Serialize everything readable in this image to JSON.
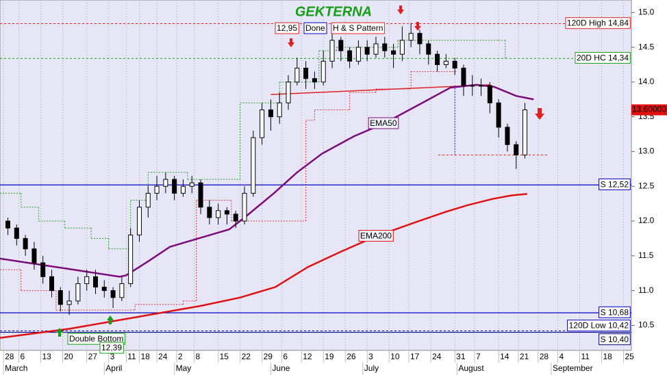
{
  "chart_data": {
    "type": "candlestick",
    "title": "GEKTERNA",
    "xlim": [
      -0.8,
      143.3
    ],
    "ylim": [
      10.14,
      15.18
    ],
    "grid": true,
    "xticks": [
      {
        "value": 0,
        "label": "28"
      },
      {
        "value": 3.5,
        "label": "6"
      },
      {
        "value": 8.5,
        "label": "13"
      },
      {
        "value": 13.5,
        "label": "20"
      },
      {
        "value": 19,
        "label": "27"
      },
      {
        "value": 24,
        "label": "3"
      },
      {
        "value": 28,
        "label": "11"
      },
      {
        "value": 31,
        "label": "18"
      },
      {
        "value": 35,
        "label": "24"
      },
      {
        "value": 39.5,
        "label": "2"
      },
      {
        "value": 43.5,
        "label": "8"
      },
      {
        "value": 49,
        "label": "15"
      },
      {
        "value": 54,
        "label": "22"
      },
      {
        "value": 59,
        "label": "29"
      },
      {
        "value": 63.5,
        "label": "6"
      },
      {
        "value": 68,
        "label": "12"
      },
      {
        "value": 73,
        "label": "19"
      },
      {
        "value": 78,
        "label": "26"
      },
      {
        "value": 83,
        "label": "3"
      },
      {
        "value": 88,
        "label": "10"
      },
      {
        "value": 92.5,
        "label": "17"
      },
      {
        "value": 97.5,
        "label": "24"
      },
      {
        "value": 103,
        "label": "31"
      },
      {
        "value": 107.5,
        "label": "7"
      },
      {
        "value": 113,
        "label": "14"
      },
      {
        "value": 117.5,
        "label": "21"
      },
      {
        "value": 122,
        "label": "28"
      },
      {
        "value": 126.5,
        "label": "4"
      },
      {
        "value": 131.5,
        "label": "11"
      },
      {
        "value": 136.5,
        "label": "18"
      },
      {
        "value": 141.5,
        "label": "25"
      }
    ],
    "month_ticks": [
      {
        "value": 0,
        "label": "March"
      },
      {
        "value": 23,
        "label": "April"
      },
      {
        "value": 39,
        "label": "May"
      },
      {
        "value": 61,
        "label": "June"
      },
      {
        "value": 82,
        "label": "July"
      },
      {
        "value": 103.5,
        "label": "August"
      },
      {
        "value": 125,
        "label": "September"
      }
    ],
    "yticks": [
      {
        "value": 15,
        "label": "15.0"
      },
      14.5,
      {
        "value": 14,
        "label": "14.0"
      },
      13.5,
      {
        "value": 13,
        "label": "13.0"
      },
      12.5,
      {
        "value": 12,
        "label": "12.0"
      },
      11.5,
      {
        "value": 11,
        "label": "11.0"
      },
      10.5
    ],
    "candles": {
      "up_color": "#ffffff",
      "down_color": "#000000",
      "x": [
        1,
        3,
        5,
        7,
        9,
        11,
        13,
        15,
        17,
        19,
        21,
        23,
        25,
        27,
        29,
        31,
        33,
        35,
        37,
        39,
        41,
        43,
        45,
        47,
        49,
        51,
        53,
        55,
        57,
        59,
        61,
        63,
        65,
        67,
        69,
        71,
        73,
        75,
        77,
        79,
        81,
        83,
        85,
        87,
        89,
        91,
        93,
        95,
        97,
        99,
        101,
        103,
        105,
        107,
        109,
        111,
        113,
        115,
        117,
        119
      ],
      "open": [
        12.0,
        11.9,
        11.75,
        11.6,
        11.4,
        11.2,
        11.0,
        10.8,
        10.85,
        11.1,
        11.2,
        11.05,
        11.0,
        10.9,
        11.1,
        11.8,
        12.2,
        12.4,
        12.5,
        12.6,
        12.4,
        12.5,
        12.55,
        12.2,
        12.05,
        12.15,
        12.1,
        12.0,
        12.4,
        13.2,
        13.6,
        13.5,
        13.7,
        14.0,
        14.2,
        14.05,
        14.0,
        14.3,
        14.6,
        14.45,
        14.3,
        14.5,
        14.4,
        14.55,
        14.45,
        14.4,
        14.6,
        14.7,
        14.55,
        14.4,
        14.25,
        14.3,
        14.2,
        13.95,
        13.95,
        13.95,
        13.7,
        13.35,
        13.1,
        12.95
      ],
      "high": [
        12.05,
        11.95,
        11.8,
        11.7,
        11.5,
        11.3,
        11.05,
        11.0,
        11.2,
        11.3,
        11.3,
        11.15,
        11.05,
        11.2,
        11.9,
        12.3,
        12.5,
        12.65,
        12.7,
        12.65,
        12.6,
        12.65,
        12.6,
        12.3,
        12.25,
        12.2,
        12.15,
        12.5,
        13.3,
        13.7,
        13.75,
        13.85,
        14.1,
        14.35,
        14.3,
        14.15,
        14.45,
        14.7,
        14.65,
        14.5,
        14.6,
        14.6,
        14.65,
        14.65,
        14.55,
        14.8,
        14.85,
        14.75,
        14.6,
        14.45,
        14.4,
        14.35,
        14.25,
        14.1,
        14.05,
        14.0,
        13.75,
        13.4,
        13.15,
        13.7
      ],
      "low": [
        11.8,
        11.65,
        11.5,
        11.3,
        11.1,
        10.9,
        10.7,
        10.65,
        10.8,
        11.0,
        10.95,
        10.9,
        10.75,
        10.85,
        11.05,
        11.7,
        12.05,
        12.3,
        12.4,
        12.3,
        12.35,
        12.4,
        12.1,
        11.95,
        11.95,
        11.95,
        11.9,
        11.95,
        12.35,
        13.1,
        13.3,
        13.4,
        13.6,
        13.95,
        13.9,
        13.9,
        13.95,
        14.2,
        14.3,
        14.2,
        14.25,
        14.3,
        14.35,
        14.35,
        14.2,
        14.3,
        14.5,
        14.4,
        14.25,
        14.15,
        14.2,
        14.1,
        13.8,
        13.8,
        13.8,
        13.55,
        13.2,
        13.0,
        12.75,
        12.9
      ],
      "close": [
        11.9,
        11.75,
        11.6,
        11.4,
        11.2,
        11.0,
        10.8,
        10.85,
        11.1,
        11.2,
        11.05,
        11.0,
        10.9,
        11.1,
        11.8,
        12.2,
        12.4,
        12.5,
        12.6,
        12.4,
        12.5,
        12.55,
        12.2,
        12.05,
        12.15,
        12.1,
        12.0,
        12.4,
        13.2,
        13.6,
        13.5,
        13.7,
        14.0,
        14.2,
        14.05,
        14.0,
        14.3,
        14.6,
        14.45,
        14.3,
        14.5,
        14.4,
        14.55,
        14.45,
        14.4,
        14.6,
        14.7,
        14.55,
        14.4,
        14.25,
        14.3,
        14.2,
        13.95,
        13.95,
        13.95,
        13.7,
        13.35,
        13.1,
        12.95,
        13.6
      ]
    },
    "series": [
      {
        "name": "EMA50",
        "color": "#7a0a7a",
        "x": [
          -0.8,
          15,
          26.5,
          28,
          33,
          38,
          45,
          51.5,
          55,
          61.7,
          67,
          72.7,
          80,
          86.7,
          95,
          102,
          108,
          112,
          117,
          121
        ],
        "values": [
          11.46,
          11.31,
          11.2,
          11.22,
          11.42,
          11.63,
          11.76,
          11.88,
          12.05,
          12.4,
          12.7,
          12.97,
          13.22,
          13.4,
          13.68,
          13.92,
          13.96,
          13.93,
          13.8,
          13.75
        ]
      },
      {
        "name": "EMA200",
        "color": "#e01010",
        "x": [
          -0.8,
          15,
          30.5,
          45,
          54,
          62,
          69.5,
          77,
          85,
          93,
          100.8,
          106,
          111.7,
          116,
          119.5
        ],
        "values": [
          10.32,
          10.45,
          10.62,
          10.78,
          10.9,
          11.05,
          11.34,
          11.56,
          11.78,
          11.96,
          12.13,
          12.23,
          12.32,
          12.37,
          12.39
        ]
      }
    ],
    "trails": [
      {
        "color": "#e03030",
        "x": [
          -0.8,
          4,
          12,
          30,
          41,
          44,
          52,
          69,
          71,
          79,
          85,
          93,
          103
        ],
        "values": [
          11.3,
          11.0,
          10.72,
          10.8,
          10.85,
          12.3,
          12.0,
          13.45,
          13.6,
          13.85,
          13.9,
          14.15,
          14.15
        ]
      },
      {
        "color": "#20a020",
        "x": [
          -0.8,
          4,
          8,
          14,
          20,
          24,
          29,
          33,
          42,
          54,
          63,
          72,
          76,
          90,
          113,
          114.5
        ],
        "values": [
          12.4,
          12.2,
          12.0,
          11.9,
          11.75,
          11.6,
          12.3,
          12.7,
          12.6,
          13.7,
          14.0,
          14.45,
          14.5,
          14.6,
          14.6,
          14.34
        ]
      }
    ],
    "levels": [
      {
        "value": 12.52,
        "label": "S 12,52",
        "color": "#0000c0",
        "style": "solid"
      },
      {
        "value": 10.68,
        "label": "S 10,68",
        "color": "#0000c0",
        "style": "solid"
      },
      {
        "value": 10.42,
        "label": "120D Low 10,42",
        "color": "#0000c0",
        "style": "dotted"
      },
      {
        "value": 10.4,
        "label": "S 10,40",
        "color": "#000080",
        "style": "solid"
      },
      {
        "value": 14.84,
        "label": "120D High 14,84",
        "color": "#e02020",
        "style": "dotted"
      },
      {
        "value": 14.34,
        "label": "20D HC 14,34",
        "color": "#20a020",
        "style": "dotted"
      }
    ],
    "neckline": {
      "color": "#e02020",
      "x": [
        61,
        111
      ],
      "values": [
        13.82,
        13.96
      ]
    },
    "target": {
      "x": [
        99.2,
        124.2
      ],
      "value": 12.95
    },
    "measure": {
      "x": 103,
      "values": [
        13.95,
        12.95
      ]
    },
    "last_price": {
      "value": 13.6,
      "label": "13.60000"
    },
    "annotations": [
      "12,95",
      "Done",
      "H & S Pattern",
      "Double Bottom",
      "12,39"
    ]
  }
}
